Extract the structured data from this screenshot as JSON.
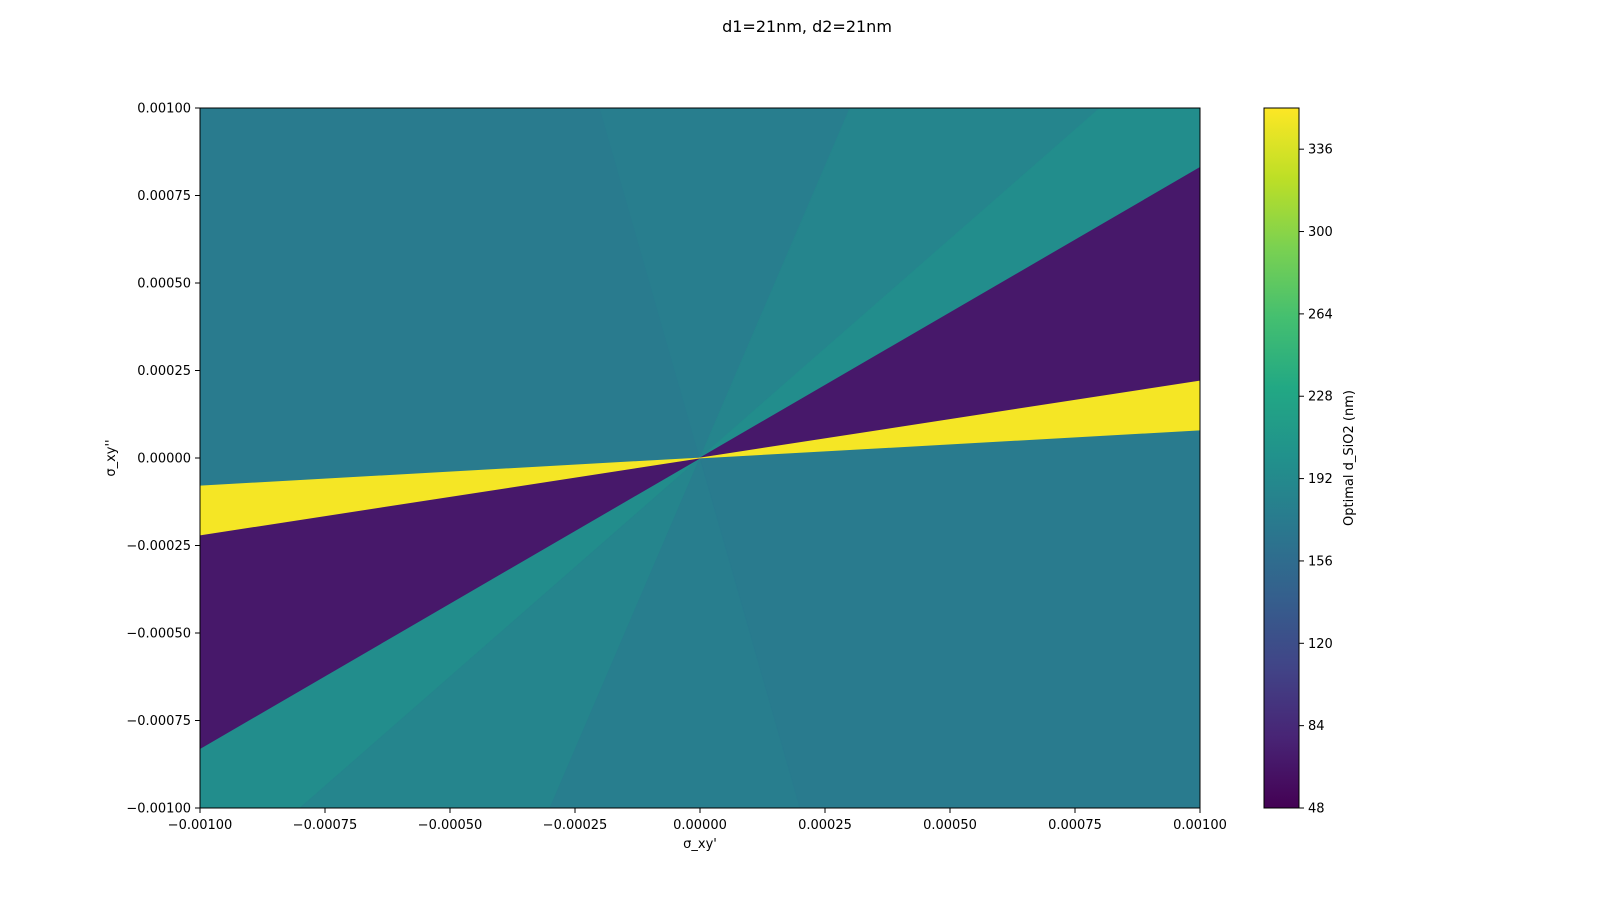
{
  "chart_data": {
    "type": "heatmap",
    "title": "d1=21nm, d2=21nm",
    "xlabel": "σ_xy'",
    "ylabel": "σ_xy''",
    "xlim": [
      -0.001,
      0.001
    ],
    "ylim": [
      -0.001,
      0.001
    ],
    "x_ticks": [
      {
        "value": -0.001,
        "label": "−0.00100"
      },
      {
        "value": -0.00075,
        "label": "−0.00075"
      },
      {
        "value": -0.0005,
        "label": "−0.00050"
      },
      {
        "value": -0.00025,
        "label": "−0.00025"
      },
      {
        "value": 0,
        "label": "0.00000"
      },
      {
        "value": 0.00025,
        "label": "0.00025"
      },
      {
        "value": 0.0005,
        "label": "0.00050"
      },
      {
        "value": 0.00075,
        "label": "0.00075"
      },
      {
        "value": 0.001,
        "label": "0.00100"
      }
    ],
    "y_ticks": [
      {
        "value": 0.001,
        "label": "0.00100"
      },
      {
        "value": 0.00075,
        "label": "0.00075"
      },
      {
        "value": 0.0005,
        "label": "0.00050"
      },
      {
        "value": 0.00025,
        "label": "0.00025"
      },
      {
        "value": 0,
        "label": "0.00000"
      },
      {
        "value": -0.00025,
        "label": "−0.00025"
      },
      {
        "value": -0.0005,
        "label": "−0.00050"
      },
      {
        "value": -0.00075,
        "label": "−0.00075"
      },
      {
        "value": -0.001,
        "label": "−0.00100"
      }
    ],
    "colorbar": {
      "label": "Optimal d_SiO2 (nm)",
      "colormap": "viridis",
      "range": [
        48,
        354
      ],
      "ticks": [
        {
          "value": 48,
          "label": "48"
        },
        {
          "value": 84,
          "label": "84"
        },
        {
          "value": 120,
          "label": "120"
        },
        {
          "value": 156,
          "label": "156"
        },
        {
          "value": 192,
          "label": "192"
        },
        {
          "value": 228,
          "label": "228"
        },
        {
          "value": 264,
          "label": "264"
        },
        {
          "value": 300,
          "label": "300"
        },
        {
          "value": 336,
          "label": "336"
        }
      ]
    },
    "regions": [
      {
        "name": "upper-left",
        "value": 174,
        "polygon": [
          [
            -0.001,
            0.001
          ],
          [
            -0.0002,
            0.001
          ],
          [
            0,
            0
          ],
          [
            -0.001,
            -0.0002
          ]
        ]
      },
      {
        "name": "top-wedge",
        "value": 178,
        "polygon": [
          [
            -0.0002,
            0.001
          ],
          [
            0.0003,
            0.001
          ],
          [
            0,
            0
          ]
        ]
      },
      {
        "name": "upper-right-band",
        "value": 186,
        "polygon": [
          [
            0.0003,
            0.001
          ],
          [
            0.0008,
            0.001
          ],
          [
            0,
            0
          ]
        ]
      },
      {
        "name": "upper-right-edge-band",
        "value": 196,
        "polygon": [
          [
            0.0008,
            0.001
          ],
          [
            0.001,
            0.001
          ],
          [
            0.001,
            0.00083
          ],
          [
            0,
            0
          ]
        ]
      },
      {
        "name": "bottom-left-edge-band",
        "value": 196,
        "polygon": [
          [
            -0.001,
            -0.00083
          ],
          [
            -0.001,
            -0.001
          ],
          [
            -0.0008,
            -0.001
          ],
          [
            0,
            0
          ]
        ]
      },
      {
        "name": "bottom-left-band",
        "value": 186,
        "polygon": [
          [
            -0.0008,
            -0.001
          ],
          [
            -0.0003,
            -0.001
          ],
          [
            0,
            0
          ]
        ]
      },
      {
        "name": "bottom-wedge",
        "value": 178,
        "polygon": [
          [
            -0.0003,
            -0.001
          ],
          [
            0.0002,
            -0.001
          ],
          [
            0,
            0
          ]
        ]
      },
      {
        "name": "lower-right",
        "value": 174,
        "polygon": [
          [
            0.0002,
            -0.001
          ],
          [
            0.001,
            -0.001
          ],
          [
            0.001,
            0.0002
          ],
          [
            0,
            0
          ]
        ]
      },
      {
        "name": "right-purple-band",
        "value": 68,
        "polygon": [
          [
            0,
            0
          ],
          [
            0.001,
            0.00083
          ],
          [
            0.001,
            0.0001
          ]
        ]
      },
      {
        "name": "left-purple-band",
        "value": 68,
        "polygon": [
          [
            0,
            0
          ],
          [
            -0.001,
            -0.00083
          ],
          [
            -0.001,
            -0.0001
          ]
        ]
      },
      {
        "name": "right-yellow-band",
        "value": 350,
        "polygon": [
          [
            0,
            0
          ],
          [
            0.001,
            0.00022
          ],
          [
            0.001,
            8e-05
          ]
        ]
      },
      {
        "name": "left-yellow-band",
        "value": 350,
        "polygon": [
          [
            0,
            0
          ],
          [
            -0.001,
            -8e-05
          ],
          [
            -0.001,
            -0.00022
          ]
        ]
      }
    ]
  }
}
